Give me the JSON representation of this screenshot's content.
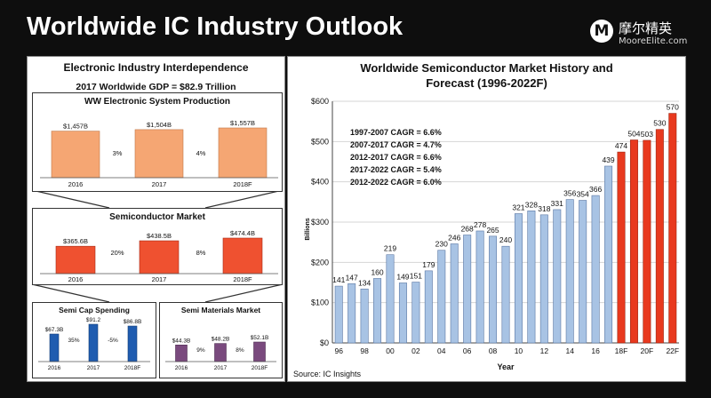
{
  "header": {
    "title": "Worldwide IC Industry Outlook",
    "logo_mark": "M",
    "logo_cn": "摩尔精英",
    "logo_en": "MooreElite.com"
  },
  "left_panel": {
    "title": "Electronic Industry Interdependence",
    "gdp": "2017 Worldwide GDP = $82.9 Trillion"
  },
  "right_panel": {
    "title_line1": "Worldwide Semiconductor Market History and",
    "title_line2": "Forecast (1996-2022F)",
    "source": "Source: IC Insights",
    "cagr": [
      "1997-2007 CAGR = 6.6%",
      "2007-2017 CAGR = 4.7%",
      "2012-2017 CAGR = 6.6%",
      "2017-2022 CAGR = 5.4%",
      "2012-2022 CAGR = 6.0%"
    ]
  },
  "chart_data": [
    {
      "type": "bar",
      "title": "Worldwide Semiconductor Market History and Forecast (1996-2022F)",
      "xlabel": "Year",
      "ylabel": "Billions",
      "ylim": [
        0,
        600
      ],
      "yticks": [
        "$0",
        "$100",
        "$200",
        "$300",
        "$400",
        "$500",
        "$600"
      ],
      "xtick_labels": [
        "96",
        "98",
        "00",
        "02",
        "04",
        "06",
        "08",
        "10",
        "12",
        "14",
        "16",
        "18F",
        "20F",
        "22F"
      ],
      "categories": [
        "96",
        "97",
        "98",
        "99",
        "00",
        "01",
        "02",
        "03",
        "04",
        "05",
        "06",
        "07",
        "08",
        "09",
        "10",
        "11",
        "12",
        "13",
        "14",
        "15",
        "16",
        "17",
        "18F",
        "19F",
        "20F",
        "21F",
        "22F"
      ],
      "values": [
        141,
        147,
        134,
        160,
        219,
        149,
        151,
        179,
        230,
        246,
        268,
        278,
        265,
        240,
        321,
        328,
        318,
        331,
        356,
        354,
        366,
        439,
        474,
        504,
        503,
        530,
        570
      ],
      "forecast_start_index": 22,
      "colors": {
        "history": "#a8c3e4",
        "forecast": "#e8391e"
      },
      "grid": "horizontal"
    },
    {
      "type": "bar",
      "title": "WW Electronic System Production",
      "categories": [
        "2016",
        "2017",
        "2018F"
      ],
      "values": [
        1457,
        1504,
        1557
      ],
      "labels": [
        "$1,457B",
        "$1,504B",
        "$1,557B"
      ],
      "growth": [
        "3%",
        "4%"
      ],
      "color": "#f5a673"
    },
    {
      "type": "bar",
      "title": "Semiconductor Market",
      "categories": [
        "2016",
        "2017",
        "2018F"
      ],
      "values": [
        365.6,
        438.5,
        474.4
      ],
      "labels": [
        "$365.6B",
        "$438.5B",
        "$474.4B"
      ],
      "growth": [
        "20%",
        "8%"
      ],
      "color": "#ef5130"
    },
    {
      "type": "bar",
      "title": "Semi Cap Spending",
      "categories": [
        "2016",
        "2017",
        "2018F"
      ],
      "values": [
        67.3,
        91.2,
        86.8
      ],
      "labels": [
        "$67.3B",
        "$91.2",
        "$86.8B"
      ],
      "growth": [
        "35%",
        "-5%"
      ],
      "color": "#1f5cb0"
    },
    {
      "type": "bar",
      "title": "Semi Materials Market",
      "categories": [
        "2016",
        "2017",
        "2018F"
      ],
      "values": [
        44.3,
        48.2,
        52.1
      ],
      "labels": [
        "$44.3B",
        "$48.2B",
        "$52.1B"
      ],
      "growth": [
        "9%",
        "8%"
      ],
      "color": "#7a4a7e"
    }
  ]
}
